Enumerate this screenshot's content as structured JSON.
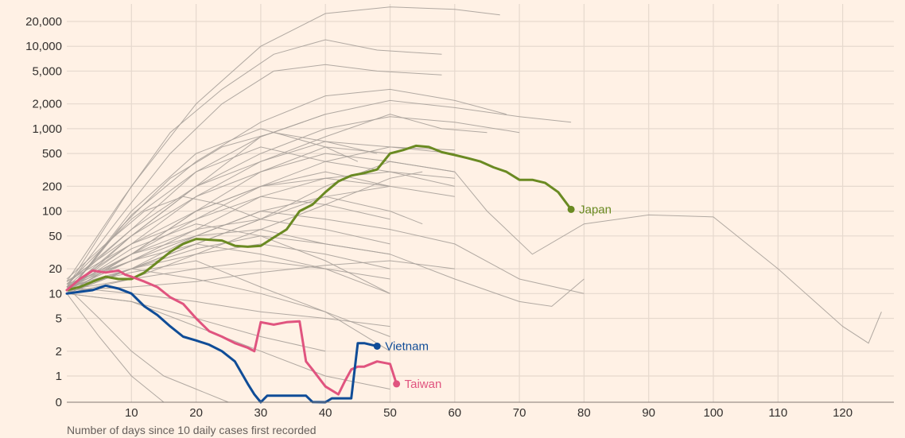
{
  "chart_data": {
    "type": "line",
    "xlabel": "Number of days since 10 daily cases first recorded",
    "ylabel": "",
    "y_scale": "log",
    "xlim": [
      0,
      130
    ],
    "x_ticks": [
      10,
      20,
      30,
      40,
      50,
      60,
      70,
      80,
      90,
      100,
      110,
      120
    ],
    "x_tick_labels": [
      "10",
      "20",
      "30",
      "40",
      "50",
      "60",
      "70",
      "80",
      "90",
      "100",
      "110",
      "120"
    ],
    "y_ticks": [
      0,
      1,
      2,
      5,
      10,
      20,
      50,
      100,
      200,
      500,
      1000,
      2000,
      5000,
      10000,
      20000
    ],
    "y_tick_labels": [
      "0",
      "1",
      "2",
      "5",
      "10",
      "20",
      "50",
      "100",
      "200",
      "500",
      "1,000",
      "2,000",
      "5,000",
      "10,000",
      "20,000"
    ],
    "grid": true,
    "highlight_series": [
      {
        "name": "Japan",
        "color": "#6a8a22",
        "x": [
          0,
          2,
          4,
          6,
          8,
          10,
          12,
          14,
          16,
          18,
          20,
          22,
          24,
          26,
          28,
          30,
          32,
          34,
          36,
          38,
          40,
          42,
          44,
          46,
          48,
          50,
          52,
          54,
          56,
          58,
          60,
          62,
          64,
          66,
          68,
          70,
          72,
          74,
          76,
          78
        ],
        "y": [
          11,
          12,
          14,
          16,
          15,
          15,
          18,
          24,
          32,
          40,
          46,
          45,
          44,
          38,
          37,
          38,
          48,
          60,
          100,
          120,
          170,
          230,
          270,
          290,
          320,
          500,
          550,
          620,
          600,
          520,
          480,
          440,
          400,
          340,
          300,
          240,
          240,
          220,
          170,
          105
        ]
      },
      {
        "name": "Taiwan",
        "color": "#e0547f",
        "x": [
          0,
          2,
          4,
          6,
          8,
          9,
          10,
          12,
          14,
          16,
          18,
          20,
          22,
          24,
          26,
          28,
          29,
          30,
          32,
          34,
          36,
          37,
          38,
          40,
          42,
          43,
          44,
          45,
          46,
          48,
          50,
          51
        ],
        "y": [
          11,
          15,
          19,
          18,
          19,
          17,
          16,
          14,
          12,
          9,
          7.5,
          5,
          3.5,
          3,
          2.5,
          2.2,
          2,
          4.5,
          4.2,
          4.5,
          4.6,
          1.5,
          1.2,
          0.6,
          0.3,
          0.8,
          1.2,
          1.3,
          1.3,
          1.5,
          1.4,
          0.7
        ]
      },
      {
        "name": "Vietnam",
        "color": "#0f4c97",
        "x": [
          0,
          2,
          4,
          6,
          8,
          10,
          12,
          14,
          16,
          18,
          20,
          22,
          24,
          26,
          28,
          29,
          30,
          31,
          34,
          36,
          37,
          38,
          40,
          41,
          42,
          43,
          44,
          45,
          46,
          48
        ],
        "y": [
          10,
          10.5,
          11,
          12.5,
          11.5,
          10,
          7,
          5.5,
          4,
          3,
          2.7,
          2.4,
          2,
          1.5,
          0.7,
          0.3,
          0,
          0.25,
          0.25,
          0.25,
          0.25,
          0.01,
          0,
          0.15,
          0.15,
          0.15,
          0.15,
          2.5,
          2.5,
          2.3
        ]
      }
    ],
    "background_series": [
      {
        "x": [
          0,
          10,
          20,
          30,
          40,
          50,
          60,
          67
        ],
        "y": [
          12,
          200,
          2000,
          10000,
          25000,
          30000,
          28000,
          24000
        ]
      },
      {
        "x": [
          0,
          8,
          16,
          24,
          32,
          40,
          48,
          58
        ],
        "y": [
          14,
          120,
          900,
          3000,
          8000,
          12000,
          9000,
          8000
        ]
      },
      {
        "x": [
          0,
          8,
          16,
          24,
          32,
          40,
          48,
          58
        ],
        "y": [
          12,
          80,
          500,
          2000,
          5000,
          6000,
          5000,
          4500
        ]
      },
      {
        "x": [
          0,
          10,
          20,
          30,
          40,
          50,
          60,
          68
        ],
        "y": [
          10,
          90,
          400,
          1200,
          2500,
          3000,
          2200,
          1500
        ]
      },
      {
        "x": [
          0,
          10,
          20,
          30,
          40,
          50,
          60,
          70,
          78
        ],
        "y": [
          12,
          60,
          300,
          800,
          1500,
          2200,
          1800,
          1400,
          1200
        ]
      },
      {
        "x": [
          0,
          10,
          20,
          30,
          40,
          50,
          60,
          70
        ],
        "y": [
          11,
          50,
          200,
          500,
          1000,
          1400,
          1200,
          900
        ]
      },
      {
        "x": [
          0,
          8,
          16,
          24,
          32,
          40,
          48
        ],
        "y": [
          10,
          60,
          250,
          600,
          900,
          700,
          500
        ]
      },
      {
        "x": [
          0,
          10,
          20,
          30,
          40,
          50,
          58,
          65
        ],
        "y": [
          12,
          40,
          150,
          400,
          800,
          1500,
          1000,
          900
        ]
      },
      {
        "x": [
          0,
          10,
          20,
          30,
          40,
          50,
          60
        ],
        "y": [
          13,
          80,
          300,
          600,
          400,
          300,
          250
        ]
      },
      {
        "x": [
          0,
          10,
          20,
          30,
          40,
          50,
          60
        ],
        "y": [
          10,
          30,
          100,
          200,
          250,
          200,
          150
        ]
      },
      {
        "x": [
          0,
          10,
          20,
          30,
          40,
          50,
          60
        ],
        "y": [
          11,
          25,
          60,
          150,
          250,
          300,
          200
        ]
      },
      {
        "x": [
          0,
          10,
          20,
          30,
          40,
          50
        ],
        "y": [
          14,
          40,
          80,
          150,
          120,
          80
        ]
      },
      {
        "x": [
          0,
          10,
          20,
          30,
          40,
          50,
          55
        ],
        "y": [
          10,
          20,
          50,
          100,
          150,
          100,
          70
        ]
      },
      {
        "x": [
          0,
          10,
          20,
          30,
          40,
          50
        ],
        "y": [
          12,
          30,
          60,
          80,
          60,
          40
        ]
      },
      {
        "x": [
          0,
          10,
          20,
          30,
          40,
          50
        ],
        "y": [
          10,
          20,
          30,
          40,
          30,
          20
        ]
      },
      {
        "x": [
          0,
          10,
          20,
          30,
          40,
          50
        ],
        "y": [
          11,
          15,
          20,
          25,
          20,
          15
        ]
      },
      {
        "x": [
          0,
          10,
          20,
          30,
          40,
          50
        ],
        "y": [
          12,
          10,
          8,
          6,
          5,
          4
        ]
      },
      {
        "x": [
          0,
          10,
          20,
          30,
          40
        ],
        "y": [
          10,
          8,
          5,
          3,
          2
        ]
      },
      {
        "x": [
          0,
          10,
          20,
          30,
          40,
          50
        ],
        "y": [
          13,
          25,
          40,
          30,
          20,
          10
        ]
      },
      {
        "x": [
          0,
          10,
          20,
          30,
          40,
          50
        ],
        "y": [
          11,
          40,
          100,
          200,
          300,
          200
        ]
      },
      {
        "x": [
          0,
          6,
          12,
          18,
          24,
          30
        ],
        "y": [
          15,
          40,
          100,
          150,
          120,
          80
        ]
      },
      {
        "x": [
          0,
          10,
          20,
          30,
          40,
          50,
          60
        ],
        "y": [
          10,
          50,
          150,
          300,
          500,
          400,
          300
        ]
      },
      {
        "x": [
          0,
          10,
          20,
          30,
          40,
          50,
          60
        ],
        "y": [
          12,
          30,
          80,
          200,
          400,
          600,
          500
        ]
      },
      {
        "x": [
          0,
          10,
          20,
          30,
          40,
          50
        ],
        "y": [
          10,
          20,
          40,
          80,
          150,
          200
        ]
      },
      {
        "x": [
          0,
          10,
          20,
          30,
          40,
          50,
          60,
          70,
          80
        ],
        "y": [
          11,
          30,
          50,
          100,
          80,
          60,
          40,
          15,
          10
        ]
      },
      {
        "x": [
          0,
          10,
          20,
          30,
          40,
          50,
          60,
          65,
          72,
          80,
          90,
          100,
          110,
          120,
          124,
          126
        ],
        "y": [
          10,
          20,
          40,
          80,
          200,
          400,
          300,
          100,
          30,
          70,
          90,
          85,
          20,
          4,
          2.5,
          6
        ]
      },
      {
        "x": [
          0,
          10,
          20,
          30,
          40,
          50,
          60,
          70,
          75,
          80
        ],
        "y": [
          12,
          25,
          50,
          60,
          40,
          30,
          15,
          8,
          7,
          15
        ]
      },
      {
        "x": [
          0,
          10,
          20,
          30,
          40,
          50
        ],
        "y": [
          10,
          8,
          4,
          2,
          1,
          0.5
        ]
      },
      {
        "x": [
          0,
          5,
          10,
          15,
          20,
          25
        ],
        "y": [
          12,
          5,
          2,
          1,
          0.5,
          0
        ]
      },
      {
        "x": [
          0,
          5,
          10,
          15
        ],
        "y": [
          10,
          3,
          1,
          0
        ]
      },
      {
        "x": [
          0,
          10,
          20,
          30,
          40,
          50
        ],
        "y": [
          11,
          20,
          35,
          50,
          40,
          30
        ]
      },
      {
        "x": [
          0,
          10,
          20,
          30,
          40,
          50,
          55
        ],
        "y": [
          10,
          15,
          30,
          60,
          120,
          250,
          300
        ]
      },
      {
        "x": [
          0,
          10,
          20,
          30,
          40,
          50
        ],
        "y": [
          12,
          20,
          15,
          10,
          6,
          3
        ]
      },
      {
        "x": [
          0,
          10,
          20,
          30,
          40
        ],
        "y": [
          14,
          50,
          200,
          800,
          1500
        ]
      },
      {
        "x": [
          0,
          10,
          20,
          30,
          40,
          45
        ],
        "y": [
          10,
          100,
          500,
          1000,
          600,
          400
        ]
      },
      {
        "x": [
          0,
          10,
          20,
          30,
          40,
          50
        ],
        "y": [
          11,
          35,
          70,
          50,
          25,
          10
        ]
      },
      {
        "x": [
          0,
          10,
          20,
          30,
          40,
          50
        ],
        "y": [
          12,
          18,
          25,
          12,
          6,
          2
        ]
      },
      {
        "x": [
          0,
          10,
          20,
          30,
          40,
          50
        ],
        "y": [
          10,
          30,
          100,
          300,
          600,
          500
        ]
      },
      {
        "x": [
          0,
          10,
          20,
          30,
          40,
          50,
          60
        ],
        "y": [
          13,
          60,
          200,
          400,
          700,
          600,
          550
        ]
      },
      {
        "x": [
          0,
          10,
          20,
          30,
          40,
          50,
          60
        ],
        "y": [
          11,
          12,
          14,
          18,
          22,
          25,
          20
        ]
      }
    ]
  }
}
